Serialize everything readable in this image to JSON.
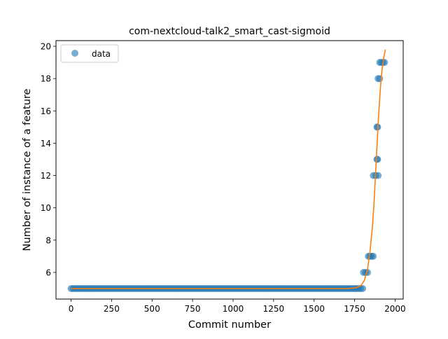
{
  "chart_data": {
    "type": "scatter",
    "title": "com-nextcloud-talk2_smart_cast-sigmoid",
    "xlabel": "Commit number",
    "ylabel": "Number of instance of a feature",
    "xlim": [
      -93,
      2050
    ],
    "ylim": [
      4.35,
      20.35
    ],
    "xticks": [
      0,
      250,
      500,
      750,
      1000,
      1250,
      1500,
      1750,
      2000
    ],
    "yticks": [
      6,
      8,
      10,
      12,
      14,
      16,
      18,
      20
    ],
    "grid": false,
    "legend": {
      "placement": "top-left",
      "entries": [
        "data"
      ]
    },
    "series": [
      {
        "name": "data",
        "kind": "points",
        "color": "#1f77b4",
        "segments": [
          {
            "y": 5,
            "x_start": 0,
            "x_end": 1800
          },
          {
            "y": 6,
            "x_start": 1805,
            "x_end": 1830
          },
          {
            "y": 7,
            "x_start": 1835,
            "x_end": 1865
          },
          {
            "y": 12,
            "x_start": 1866,
            "x_end": 1895
          },
          {
            "y": 13,
            "x_start": 1888,
            "x_end": 1892
          },
          {
            "y": 15,
            "x_start": 1888,
            "x_end": 1892
          },
          {
            "y": 18,
            "x_start": 1895,
            "x_end": 1905
          },
          {
            "y": 19,
            "x_start": 1905,
            "x_end": 1935
          }
        ]
      },
      {
        "kind": "line",
        "color": "#ff7f0e",
        "x": [
          0,
          1700,
          1760,
          1790,
          1810,
          1830,
          1845,
          1860,
          1870,
          1880,
          1890,
          1900,
          1910,
          1920,
          1930,
          1940
        ],
        "y": [
          5.0,
          5.0,
          5.05,
          5.2,
          5.5,
          6.2,
          7.3,
          8.8,
          10.3,
          12.2,
          14.2,
          16.0,
          17.5,
          18.6,
          19.3,
          19.8
        ]
      }
    ]
  }
}
